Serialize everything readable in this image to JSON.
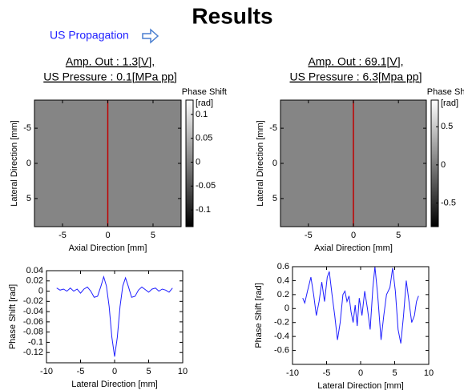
{
  "title": "Results",
  "annotation": "US Propagation",
  "chart_data": [
    {
      "type": "heatmap",
      "title": [
        "Amp. Out : 1.3[V],",
        "US Pressure : 0.1[MPa pp]"
      ],
      "x_label": "Axial Direction [mm]",
      "y_label": "Lateral Direction [mm]",
      "xlim": [
        -8.1,
        8.1
      ],
      "xticks": [
        -5,
        0,
        5
      ],
      "ylim": [
        -9,
        9
      ],
      "yticks": [
        -5,
        0,
        5
      ],
      "y_inverted": true,
      "vline": {
        "x": 0,
        "color": "#c00000"
      },
      "colorbar": {
        "title": "Phase Shift",
        "unit": "[rad]",
        "lim": [
          -0.135,
          0.13
        ],
        "ticks": [
          0.1,
          0.05,
          0,
          -0.05,
          -0.1
        ]
      }
    },
    {
      "type": "heatmap",
      "title": [
        "Amp. Out : 69.1[V],",
        "US Pressure : 6.3[Mpa pp]"
      ],
      "x_label": "Axial Direction [mm]",
      "y_label": "Lateral Direction [mm]",
      "xlim": [
        -8.1,
        8.1
      ],
      "xticks": [
        -5,
        0,
        5
      ],
      "ylim": [
        -9,
        9
      ],
      "yticks": [
        -5,
        0,
        5
      ],
      "y_inverted": true,
      "vline": {
        "x": 0,
        "color": "#c00000"
      },
      "colorbar": {
        "title": "Phase Shift",
        "unit": "[rad]",
        "lim": [
          -0.81,
          0.85
        ],
        "ticks": [
          0.5,
          0,
          -0.5
        ]
      }
    },
    {
      "type": "line",
      "x_label": "Lateral Direction [mm]",
      "y_label": "Phase Shift [rad]",
      "xlim": [
        -10,
        10
      ],
      "xticks": [
        -10,
        -5,
        0,
        5,
        10
      ],
      "ylim": [
        -0.14,
        0.04
      ],
      "yticks": [
        0.04,
        0.02,
        0,
        -0.02,
        -0.04,
        -0.06,
        -0.08,
        -0.1,
        -0.12
      ],
      "x": [
        -8.5,
        -8,
        -7.5,
        -7,
        -6.5,
        -6,
        -5.5,
        -5,
        -4.5,
        -4,
        -3.5,
        -3,
        -2.5,
        -2,
        -1.6,
        -1.2,
        -0.8,
        -0.4,
        0,
        0.4,
        0.8,
        1.2,
        1.6,
        2,
        2.5,
        3,
        3.5,
        4,
        4.5,
        5,
        5.5,
        6,
        6.5,
        7,
        7.5,
        8,
        8.5
      ],
      "series": [
        {
          "color": "#1f1fff",
          "values": [
            0.006,
            0.002,
            0.004,
            0.0,
            0.006,
            0.0,
            0.004,
            -0.004,
            0.004,
            0.008,
            0.0,
            -0.012,
            -0.01,
            0.01,
            0.028,
            0.01,
            -0.03,
            -0.09,
            -0.128,
            -0.09,
            -0.03,
            0.01,
            0.026,
            0.01,
            -0.012,
            -0.01,
            0.002,
            0.008,
            0.003,
            -0.002,
            0.004,
            0.006,
            0.0,
            0.004,
            0.002,
            -0.002,
            0.006
          ]
        }
      ]
    },
    {
      "type": "line",
      "x_label": "Lateral Direction [mm]",
      "y_label": "Phase Shift [rad]",
      "xlim": [
        -10,
        10
      ],
      "xticks": [
        -10,
        -5,
        0,
        5,
        10
      ],
      "ylim": [
        -0.8,
        0.6
      ],
      "yticks": [
        0.6,
        0.4,
        0.2,
        0,
        -0.2,
        -0.4,
        -0.6
      ],
      "x": [
        -8.5,
        -8.2,
        -7.8,
        -7.3,
        -6.9,
        -6.5,
        -6.1,
        -5.7,
        -5.3,
        -4.9,
        -4.6,
        -4.2,
        -3.8,
        -3.4,
        -3.0,
        -2.6,
        -2.3,
        -2.0,
        -1.7,
        -1.4,
        -1.1,
        -0.8,
        -0.5,
        -0.2,
        0.2,
        0.6,
        1.0,
        1.4,
        1.8,
        2.1,
        2.5,
        3.0,
        3.4,
        3.8,
        4.3,
        4.7,
        5.1,
        5.5,
        5.9,
        6.3,
        6.7,
        7.1,
        7.5,
        7.9,
        8.2,
        8.5
      ],
      "series": [
        {
          "color": "#1f1fff",
          "values": [
            0.15,
            0.08,
            0.25,
            0.45,
            0.2,
            -0.1,
            0.1,
            0.38,
            0.1,
            0.45,
            0.53,
            0.2,
            -0.1,
            -0.45,
            -0.2,
            0.2,
            0.25,
            0.1,
            0.18,
            -0.05,
            -0.2,
            0.05,
            -0.25,
            0.15,
            -0.1,
            0.25,
            0.0,
            -0.3,
            0.3,
            0.6,
            0.2,
            -0.45,
            -0.1,
            0.2,
            0.3,
            0.58,
            0.25,
            -0.3,
            -0.5,
            -0.1,
            0.4,
            0.1,
            -0.2,
            -0.1,
            0.1,
            0.18
          ]
        }
      ]
    }
  ]
}
